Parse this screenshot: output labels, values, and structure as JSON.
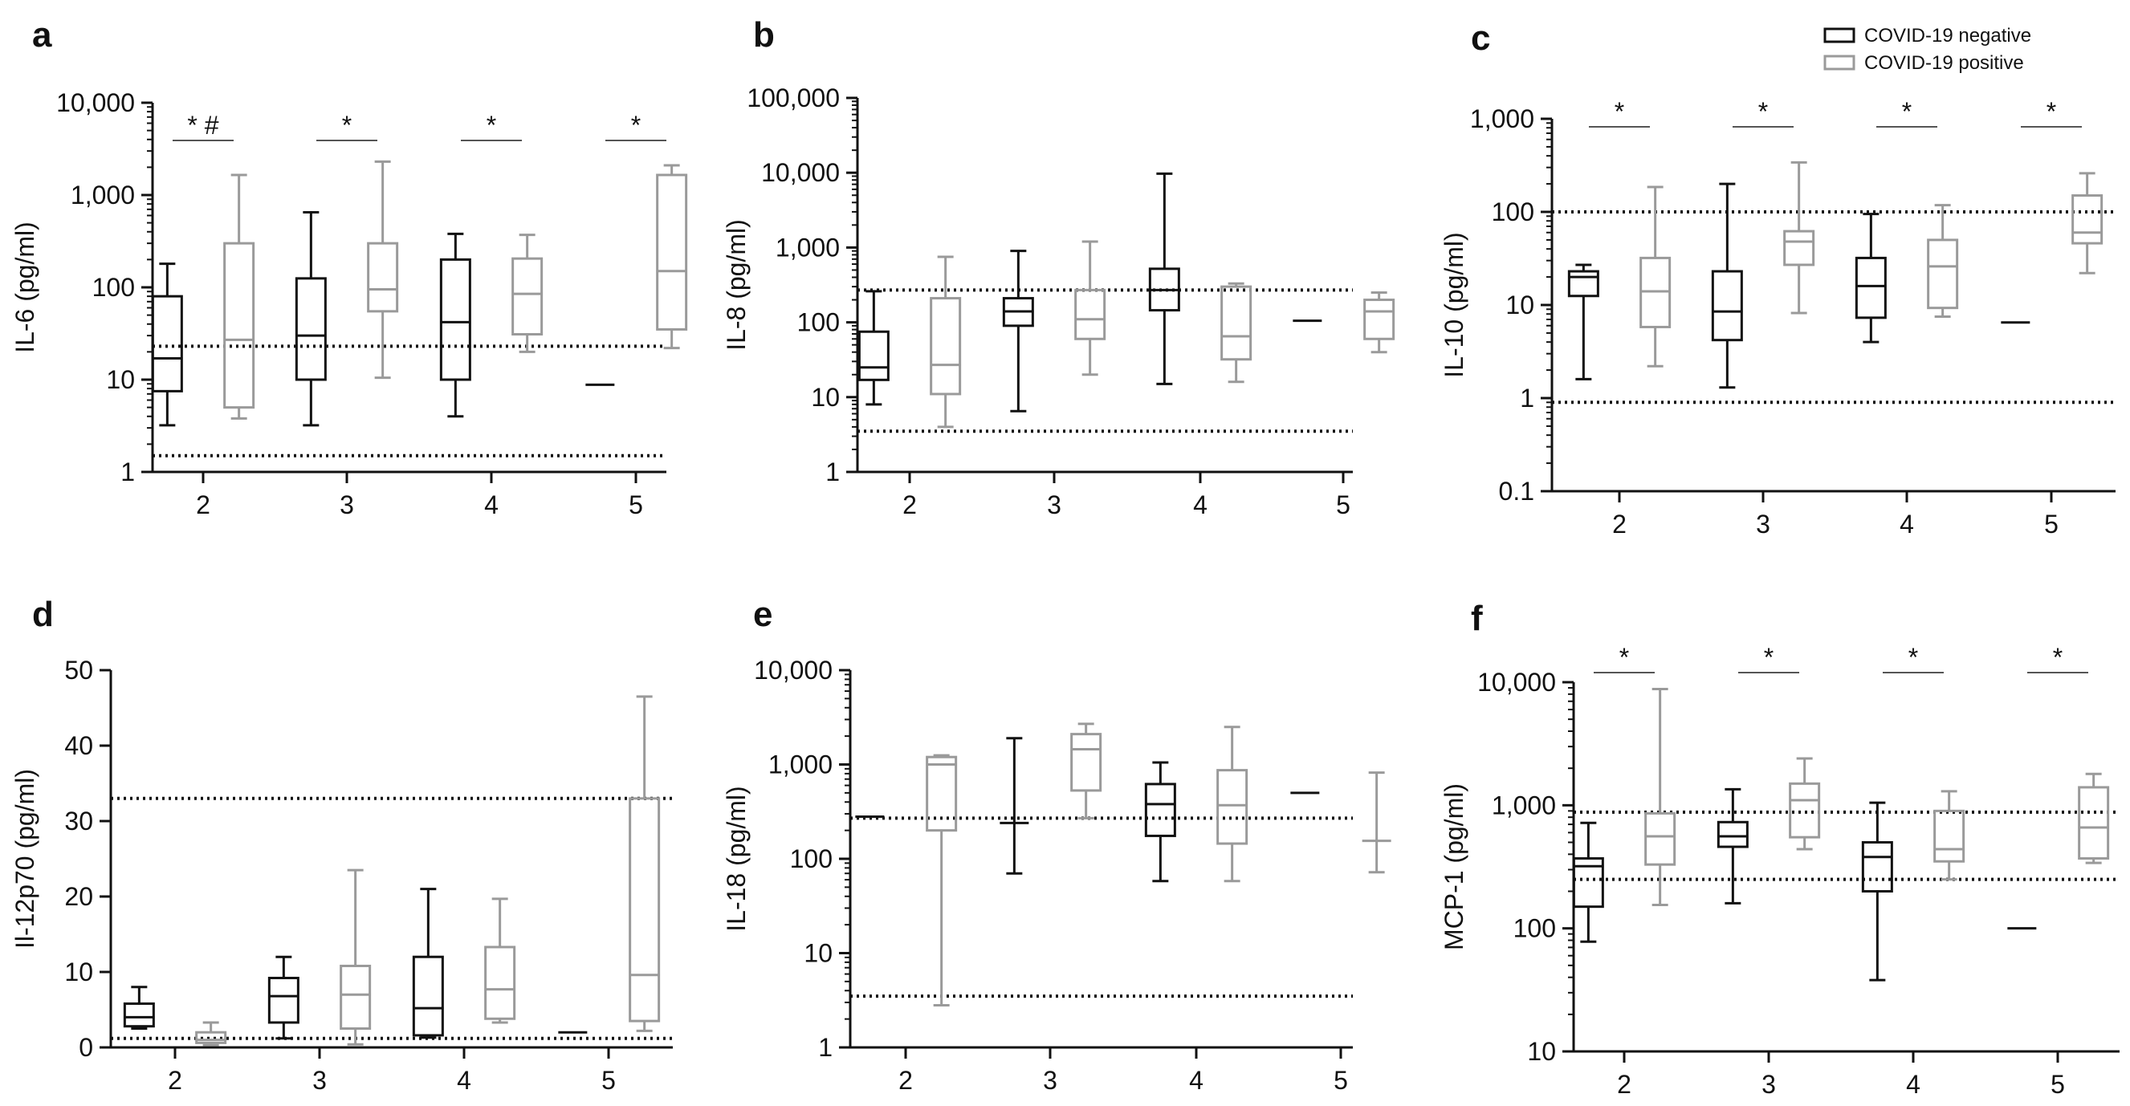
{
  "figure": {
    "legend": {
      "entries": [
        {
          "label": "COVID-19 negative",
          "color": "#111111"
        },
        {
          "label": "COVID-19 positive",
          "color": "#9a9a9a"
        }
      ],
      "location": "top-right of panel c"
    },
    "colors": {
      "negative": "#111111",
      "positive": "#9a9a9a",
      "reference": "#111111"
    }
  },
  "chart_data": [
    {
      "panel": "a",
      "type": "box",
      "scale": "log",
      "ylabel": "IL-6 (pg/ml)",
      "yticks": [
        1,
        10,
        100,
        1000,
        10000
      ],
      "ytick_labels": [
        "1",
        "10",
        "100",
        "1,000",
        "10,000"
      ],
      "ylim": [
        1,
        10000
      ],
      "categories": [
        "2",
        "3",
        "4",
        "5"
      ],
      "reference_lines": [
        23,
        1.5
      ],
      "series": [
        {
          "name": "COVID-19 negative",
          "boxes": [
            {
              "min": 3.2,
              "q1": 7.5,
              "median": 17,
              "q3": 80,
              "max": 180
            },
            {
              "min": 3.2,
              "q1": 10,
              "median": 30,
              "q3": 125,
              "max": 650
            },
            {
              "min": 4,
              "q1": 10,
              "median": 42,
              "q3": 200,
              "max": 380
            },
            {
              "min": 8.8,
              "q1": 8.8,
              "median": 8.8,
              "q3": 8.8,
              "max": 8.8
            }
          ]
        },
        {
          "name": "COVID-19 positive",
          "boxes": [
            {
              "min": 3.8,
              "q1": 5,
              "median": 27,
              "q3": 300,
              "max": 1650
            },
            {
              "min": 10.5,
              "q1": 55,
              "median": 95,
              "q3": 300,
              "max": 2300
            },
            {
              "min": 20,
              "q1": 31,
              "median": 85,
              "q3": 205,
              "max": 370
            },
            {
              "min": 22,
              "q1": 35,
              "median": 150,
              "q3": 1650,
              "max": 2100
            }
          ]
        }
      ],
      "significance": [
        "* #",
        "*",
        "*",
        "*"
      ]
    },
    {
      "panel": "b",
      "type": "box",
      "scale": "log",
      "ylabel": "IL-8 (pg/ml)",
      "yticks": [
        1,
        10,
        100,
        1000,
        10000,
        100000
      ],
      "ytick_labels": [
        "1",
        "10",
        "100",
        "1,000",
        "10,000",
        "100,000"
      ],
      "ylim": [
        1,
        100000
      ],
      "categories": [
        "2",
        "3",
        "4",
        "5"
      ],
      "reference_lines": [
        270,
        3.5
      ],
      "series": [
        {
          "name": "COVID-19 negative",
          "boxes": [
            {
              "min": 8,
              "q1": 17,
              "median": 25,
              "q3": 75,
              "max": 260
            },
            {
              "min": 6.5,
              "q1": 90,
              "median": 140,
              "q3": 210,
              "max": 900
            },
            {
              "min": 15,
              "q1": 145,
              "median": 270,
              "q3": 520,
              "max": 9700
            },
            {
              "min": 105,
              "q1": 105,
              "median": 105,
              "q3": 105,
              "max": 105
            }
          ]
        },
        {
          "name": "COVID-19 positive",
          "boxes": [
            {
              "min": 4,
              "q1": 11,
              "median": 27,
              "q3": 210,
              "max": 750
            },
            {
              "min": 20,
              "q1": 60,
              "median": 110,
              "q3": 270,
              "max": 1200
            },
            {
              "min": 16,
              "q1": 32,
              "median": 65,
              "q3": 300,
              "max": 330
            },
            {
              "min": 40,
              "q1": 60,
              "median": 140,
              "q3": 200,
              "max": 250
            }
          ]
        }
      ],
      "significance": []
    },
    {
      "panel": "c",
      "type": "box",
      "scale": "log",
      "ylabel": "IL-10 (pg/ml)",
      "yticks": [
        0.1,
        1,
        10,
        100,
        1000
      ],
      "ytick_labels": [
        "0.1",
        "1",
        "10",
        "100",
        "1,000"
      ],
      "ylim": [
        0.1,
        1000
      ],
      "categories": [
        "2",
        "3",
        "4",
        "5"
      ],
      "reference_lines": [
        100,
        0.9
      ],
      "series": [
        {
          "name": "COVID-19 negative",
          "boxes": [
            {
              "min": 1.6,
              "q1": 12.5,
              "median": 20,
              "q3": 23,
              "max": 27
            },
            {
              "min": 1.3,
              "q1": 4.2,
              "median": 8.5,
              "q3": 23,
              "max": 200
            },
            {
              "min": 4,
              "q1": 7.3,
              "median": 16,
              "q3": 32,
              "max": 95
            },
            {
              "min": 6.5,
              "q1": 6.5,
              "median": 6.5,
              "q3": 6.5,
              "max": 6.5
            }
          ]
        },
        {
          "name": "COVID-19 positive",
          "boxes": [
            {
              "min": 2.2,
              "q1": 5.8,
              "median": 14,
              "q3": 32,
              "max": 185
            },
            {
              "min": 8.2,
              "q1": 27,
              "median": 48,
              "q3": 62,
              "max": 340
            },
            {
              "min": 7.5,
              "q1": 9.3,
              "median": 26,
              "q3": 50,
              "max": 118
            },
            {
              "min": 22,
              "q1": 46,
              "median": 60,
              "q3": 150,
              "max": 260
            }
          ]
        }
      ],
      "significance": [
        "*",
        "*",
        "*",
        "*"
      ]
    },
    {
      "panel": "d",
      "type": "box",
      "scale": "linear",
      "ylabel": "Il-12p70 (pg/ml)",
      "yticks": [
        0,
        10,
        20,
        30,
        40,
        50
      ],
      "ytick_labels": [
        "0",
        "10",
        "20",
        "30",
        "40",
        "50"
      ],
      "ylim": [
        0,
        50
      ],
      "categories": [
        "2",
        "3",
        "4",
        "5"
      ],
      "reference_lines": [
        33,
        1.2
      ],
      "series": [
        {
          "name": "COVID-19 negative",
          "boxes": [
            {
              "min": 2.5,
              "q1": 2.8,
              "median": 4,
              "q3": 5.8,
              "max": 8
            },
            {
              "min": 1.2,
              "q1": 3.3,
              "median": 6.8,
              "q3": 9.2,
              "max": 12
            },
            {
              "min": 1.3,
              "q1": 1.6,
              "median": 5.2,
              "q3": 12,
              "max": 21
            },
            {
              "min": 2,
              "q1": 2,
              "median": 2,
              "q3": 2,
              "max": 2
            }
          ]
        },
        {
          "name": "COVID-19 positive",
          "boxes": [
            {
              "min": 0.3,
              "q1": 0.6,
              "median": 1,
              "q3": 2,
              "max": 3.3
            },
            {
              "min": 0.4,
              "q1": 2.5,
              "median": 7,
              "q3": 10.8,
              "max": 23.5
            },
            {
              "min": 3.3,
              "q1": 3.8,
              "median": 7.7,
              "q3": 13.3,
              "max": 19.7
            },
            {
              "min": 2.2,
              "q1": 3.5,
              "median": 9.6,
              "q3": 33,
              "max": 46.5
            }
          ]
        }
      ],
      "significance": []
    },
    {
      "panel": "e",
      "type": "box",
      "scale": "log",
      "ylabel": "IL-18 (pg/ml)",
      "yticks": [
        1,
        10,
        100,
        1000,
        10000
      ],
      "ytick_labels": [
        "1",
        "10",
        "100",
        "1,000",
        "10,000"
      ],
      "ylim": [
        1,
        10000
      ],
      "categories": [
        "2",
        "3",
        "4",
        "5"
      ],
      "reference_lines": [
        270,
        3.5
      ],
      "series": [
        {
          "name": "COVID-19 negative",
          "boxes": [
            {
              "min": 280,
              "q1": 280,
              "median": 280,
              "q3": 280,
              "max": 280
            },
            {
              "min": 70,
              "q1": 240,
              "median": 240,
              "q3": 240,
              "max": 1900
            },
            {
              "min": 58,
              "q1": 175,
              "median": 380,
              "q3": 620,
              "max": 1050
            },
            {
              "min": 500,
              "q1": 500,
              "median": 500,
              "q3": 500,
              "max": 500
            }
          ]
        },
        {
          "name": "COVID-19 positive",
          "boxes": [
            {
              "min": 2.8,
              "q1": 200,
              "median": 1000,
              "q3": 1200,
              "max": 1250
            },
            {
              "min": 270,
              "q1": 530,
              "median": 1450,
              "q3": 2100,
              "max": 2700
            },
            {
              "min": 58,
              "q1": 145,
              "median": 370,
              "q3": 870,
              "max": 2500
            },
            {
              "min": 72,
              "q1": 155,
              "median": 155,
              "q3": 155,
              "max": 820
            }
          ]
        }
      ],
      "significance": []
    },
    {
      "panel": "f",
      "type": "box",
      "scale": "log",
      "ylabel": "MCP-1 (pg/ml)",
      "yticks": [
        10,
        100,
        1000,
        10000
      ],
      "ytick_labels": [
        "10",
        "100",
        "1,000",
        "10,000"
      ],
      "ylim": [
        10,
        10000
      ],
      "categories": [
        "2",
        "3",
        "4",
        "5"
      ],
      "reference_lines": [
        880,
        250
      ],
      "series": [
        {
          "name": "COVID-19 negative",
          "boxes": [
            {
              "min": 78,
              "q1": 150,
              "median": 320,
              "q3": 370,
              "max": 720
            },
            {
              "min": 160,
              "q1": 460,
              "median": 560,
              "q3": 730,
              "max": 1350
            },
            {
              "min": 38,
              "q1": 200,
              "median": 380,
              "q3": 500,
              "max": 1050
            },
            {
              "min": 100,
              "q1": 100,
              "median": 100,
              "q3": 100,
              "max": 100
            }
          ]
        },
        {
          "name": "COVID-19 positive",
          "boxes": [
            {
              "min": 155,
              "q1": 330,
              "median": 560,
              "q3": 860,
              "max": 8800
            },
            {
              "min": 440,
              "q1": 550,
              "median": 1100,
              "q3": 1500,
              "max": 2400
            },
            {
              "min": 250,
              "q1": 350,
              "median": 440,
              "q3": 900,
              "max": 1300
            },
            {
              "min": 340,
              "q1": 370,
              "median": 660,
              "q3": 1400,
              "max": 1800
            }
          ]
        }
      ],
      "significance": [
        "*",
        "*",
        "*",
        "*"
      ]
    }
  ]
}
